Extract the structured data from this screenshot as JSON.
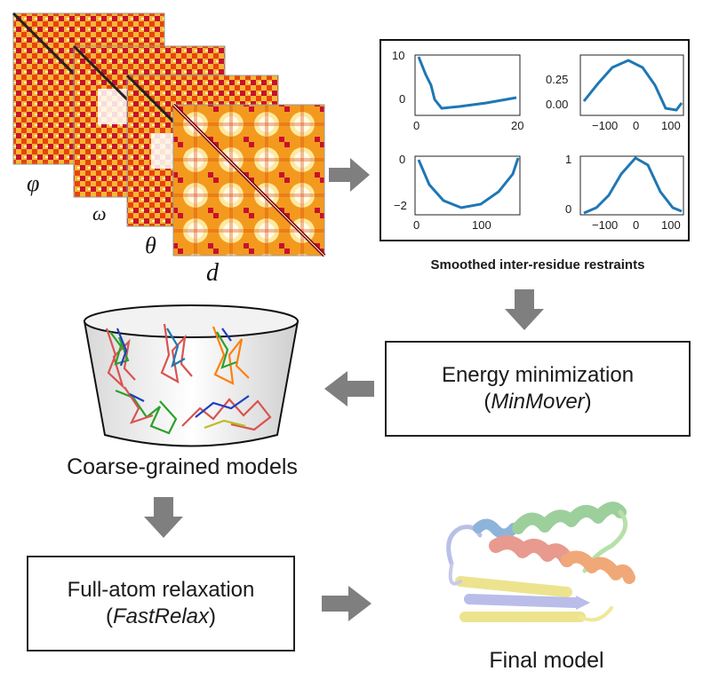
{
  "maps": {
    "labels": [
      "φ",
      "ω",
      "θ",
      "d"
    ]
  },
  "restraints": {
    "caption": "Smoothed inter-residue restraints",
    "plots": [
      {
        "yticks": [
          "10",
          "0"
        ],
        "xticks": [
          "0",
          "20"
        ]
      },
      {
        "yticks": [
          "0.25",
          "0.00"
        ],
        "xticks": [
          "−100",
          "0",
          "100"
        ]
      },
      {
        "yticks": [
          "0",
          "−2"
        ],
        "xticks": [
          "0",
          "100"
        ]
      },
      {
        "yticks": [
          "1",
          "0"
        ],
        "xticks": [
          "−100",
          "0",
          "100"
        ]
      }
    ]
  },
  "energy": {
    "line1": "Energy minimization",
    "paren_open": "(",
    "method": "MinMover",
    "paren_close": ")"
  },
  "coarse": {
    "label": "Coarse-grained models"
  },
  "fullatom": {
    "line1": "Full-atom relaxation",
    "paren_open": "(",
    "method": "FastRelax",
    "paren_close": ")"
  },
  "final": {
    "label": "Final model"
  },
  "colors": {
    "arrow": "#7f7f7f",
    "curve": "#1f77b4",
    "heat_dark": "#b30000",
    "heat_light": "#fff5c0"
  }
}
